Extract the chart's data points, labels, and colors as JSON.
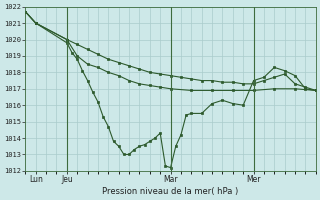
{
  "bg_color": "#cde8e8",
  "grid_color": "#aacccc",
  "line_color": "#2d5a2d",
  "marker_color": "#2d5a2d",
  "xlabel": "Pression niveau de la mer( hPa )",
  "ylim": [
    1012,
    1022
  ],
  "yticks": [
    1012,
    1013,
    1014,
    1015,
    1016,
    1017,
    1018,
    1019,
    1020,
    1021,
    1022
  ],
  "xlim": [
    0,
    28
  ],
  "vlines_x": [
    4,
    14,
    22
  ],
  "x_tick_labels_pos": [
    1,
    4,
    14,
    22
  ],
  "x_tick_labels": [
    "Lun",
    "Jeu",
    "Mar",
    "Mer"
  ],
  "series1_x": [
    0,
    1,
    4,
    5,
    6,
    7,
    8,
    9,
    10,
    11,
    12,
    13,
    14,
    15,
    16,
    17,
    18,
    19,
    20,
    21,
    22,
    23,
    24,
    25,
    26,
    27,
    28
  ],
  "series1_y": [
    1021.7,
    1021.0,
    1020.0,
    1019.7,
    1019.4,
    1019.1,
    1018.8,
    1018.6,
    1018.4,
    1018.2,
    1018.0,
    1017.9,
    1017.8,
    1017.7,
    1017.6,
    1017.5,
    1017.5,
    1017.4,
    1017.4,
    1017.3,
    1017.3,
    1017.5,
    1017.7,
    1017.9,
    1017.3,
    1017.1,
    1016.9
  ],
  "series2_x": [
    0,
    1,
    4,
    4.5,
    5,
    5.5,
    6,
    6.5,
    7,
    7.5,
    8,
    8.5,
    9,
    9.5,
    10,
    10.5,
    11,
    11.5,
    12,
    12.5,
    13,
    13.5,
    14,
    14.5,
    15,
    15.5,
    16,
    17,
    18,
    19,
    20,
    21,
    22,
    23,
    24,
    25,
    26,
    27,
    28
  ],
  "series2_y": [
    1021.7,
    1021.0,
    1019.8,
    1019.2,
    1018.8,
    1018.1,
    1017.5,
    1016.8,
    1016.2,
    1015.3,
    1014.7,
    1013.8,
    1013.5,
    1013.0,
    1013.0,
    1013.3,
    1013.5,
    1013.6,
    1013.8,
    1014.0,
    1014.3,
    1012.3,
    1012.2,
    1013.5,
    1014.2,
    1015.4,
    1015.5,
    1015.5,
    1016.1,
    1016.3,
    1016.1,
    1016.0,
    1017.5,
    1017.7,
    1018.3,
    1018.1,
    1017.8,
    1017.0,
    1016.9
  ],
  "series3_x": [
    0,
    1,
    4,
    5,
    6,
    7,
    8,
    9,
    10,
    11,
    12,
    13,
    14,
    16,
    18,
    20,
    22,
    24,
    26,
    28
  ],
  "series3_y": [
    1021.7,
    1021.0,
    1020.0,
    1019.0,
    1018.5,
    1018.3,
    1018.0,
    1017.8,
    1017.5,
    1017.3,
    1017.2,
    1017.1,
    1017.0,
    1016.9,
    1016.9,
    1016.9,
    1016.9,
    1017.0,
    1017.0,
    1016.9
  ]
}
